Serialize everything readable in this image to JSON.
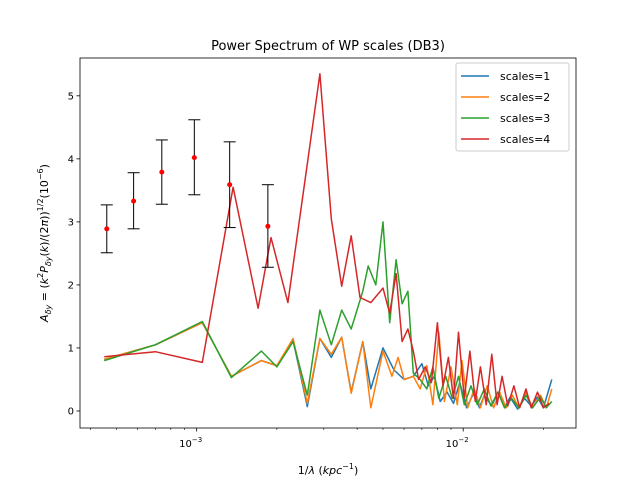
{
  "chart_data": {
    "type": "line",
    "title": "Power Spectrum of WP scales (DB3)",
    "xlabel": "1/λ (kpc⁻¹)",
    "ylabel": "A_δy = (k²P_δy(k)/(2π))^{1/2} (10⁻⁶)",
    "xscale": "log",
    "xlim": [
      0.000365,
      0.0265
    ],
    "ylim": [
      -0.27,
      5.6
    ],
    "xticks": [
      {
        "value": 0.001,
        "base": "10",
        "exp": "−3"
      },
      {
        "value": 0.01,
        "base": "10",
        "exp": "−2"
      }
    ],
    "yticks": [
      0,
      1,
      2,
      3,
      4,
      5
    ],
    "yticklabels": [
      "0",
      "1",
      "2",
      "3",
      "4",
      "5"
    ],
    "grid": false,
    "legend_position": "top-right",
    "series": [
      {
        "name": "scales=1",
        "color": "#1f77b4",
        "points": [
          [
            0.00045,
            0.82
          ],
          [
            0.0007,
            1.05
          ],
          [
            0.00105,
            1.4
          ],
          [
            0.00135,
            0.55
          ],
          [
            0.00175,
            0.8
          ],
          [
            0.002,
            0.72
          ],
          [
            0.0023,
            1.12
          ],
          [
            0.0026,
            0.07
          ],
          [
            0.0029,
            1.15
          ],
          [
            0.0032,
            0.85
          ],
          [
            0.0035,
            1.17
          ],
          [
            0.0038,
            0.3
          ],
          [
            0.0042,
            1.1
          ],
          [
            0.0045,
            0.35
          ],
          [
            0.005,
            1.0
          ],
          [
            0.0055,
            0.65
          ],
          [
            0.006,
            0.5
          ],
          [
            0.0065,
            0.55
          ],
          [
            0.007,
            0.75
          ],
          [
            0.0074,
            0.4
          ],
          [
            0.0078,
            0.55
          ],
          [
            0.0082,
            0.15
          ],
          [
            0.0087,
            0.3
          ],
          [
            0.0092,
            0.12
          ],
          [
            0.0097,
            0.45
          ],
          [
            0.0103,
            0.05
          ],
          [
            0.011,
            0.3
          ],
          [
            0.0115,
            0.05
          ],
          [
            0.012,
            0.25
          ],
          [
            0.0128,
            0.08
          ],
          [
            0.0135,
            0.3
          ],
          [
            0.0143,
            0.05
          ],
          [
            0.015,
            0.22
          ],
          [
            0.016,
            0.03
          ],
          [
            0.017,
            0.2
          ],
          [
            0.018,
            0.08
          ],
          [
            0.019,
            0.22
          ],
          [
            0.02,
            0.05
          ],
          [
            0.0215,
            0.5
          ]
        ]
      },
      {
        "name": "scales=2",
        "color": "#ff7f0e",
        "points": [
          [
            0.00045,
            0.82
          ],
          [
            0.0007,
            1.05
          ],
          [
            0.00105,
            1.4
          ],
          [
            0.00135,
            0.55
          ],
          [
            0.00175,
            0.8
          ],
          [
            0.002,
            0.72
          ],
          [
            0.0023,
            1.15
          ],
          [
            0.0026,
            0.12
          ],
          [
            0.0029,
            1.15
          ],
          [
            0.0032,
            0.9
          ],
          [
            0.0035,
            1.17
          ],
          [
            0.0038,
            0.28
          ],
          [
            0.0042,
            1.1
          ],
          [
            0.0045,
            0.05
          ],
          [
            0.005,
            0.95
          ],
          [
            0.0054,
            0.55
          ],
          [
            0.0057,
            0.85
          ],
          [
            0.006,
            0.5
          ],
          [
            0.0065,
            0.55
          ],
          [
            0.0069,
            0.35
          ],
          [
            0.0073,
            0.72
          ],
          [
            0.0077,
            0.1
          ],
          [
            0.0081,
            1.25
          ],
          [
            0.0085,
            0.15
          ],
          [
            0.009,
            0.7
          ],
          [
            0.0095,
            0.1
          ],
          [
            0.0099,
            0.8
          ],
          [
            0.0104,
            0.05
          ],
          [
            0.011,
            0.35
          ],
          [
            0.0116,
            0.05
          ],
          [
            0.0123,
            0.4
          ],
          [
            0.013,
            0.05
          ],
          [
            0.0137,
            0.3
          ],
          [
            0.0145,
            0.05
          ],
          [
            0.0153,
            0.25
          ],
          [
            0.0162,
            0.05
          ],
          [
            0.0172,
            0.3
          ],
          [
            0.0182,
            0.05
          ],
          [
            0.0195,
            0.25
          ],
          [
            0.0205,
            0.05
          ],
          [
            0.0215,
            0.35
          ]
        ]
      },
      {
        "name": "scales=3",
        "color": "#2ca02c",
        "points": [
          [
            0.00045,
            0.8
          ],
          [
            0.0007,
            1.05
          ],
          [
            0.00105,
            1.42
          ],
          [
            0.00135,
            0.53
          ],
          [
            0.00175,
            0.95
          ],
          [
            0.002,
            0.7
          ],
          [
            0.0023,
            1.1
          ],
          [
            0.0026,
            0.25
          ],
          [
            0.0029,
            1.6
          ],
          [
            0.0032,
            1.05
          ],
          [
            0.0035,
            1.6
          ],
          [
            0.0038,
            1.3
          ],
          [
            0.0042,
            1.9
          ],
          [
            0.0044,
            2.3
          ],
          [
            0.0047,
            2.0
          ],
          [
            0.005,
            3.0
          ],
          [
            0.0053,
            1.4
          ],
          [
            0.0056,
            2.4
          ],
          [
            0.0059,
            1.7
          ],
          [
            0.0062,
            1.9
          ],
          [
            0.0065,
            0.6
          ],
          [
            0.0069,
            0.5
          ],
          [
            0.0073,
            0.35
          ],
          [
            0.0077,
            0.7
          ],
          [
            0.0081,
            0.2
          ],
          [
            0.0086,
            0.55
          ],
          [
            0.0091,
            0.2
          ],
          [
            0.0096,
            0.55
          ],
          [
            0.0101,
            0.1
          ],
          [
            0.0107,
            0.4
          ],
          [
            0.0113,
            0.1
          ],
          [
            0.012,
            0.35
          ],
          [
            0.0127,
            0.08
          ],
          [
            0.0135,
            0.3
          ],
          [
            0.0143,
            0.05
          ],
          [
            0.0152,
            0.2
          ],
          [
            0.0162,
            0.05
          ],
          [
            0.0172,
            0.25
          ],
          [
            0.0182,
            0.05
          ],
          [
            0.0195,
            0.22
          ],
          [
            0.0205,
            0.05
          ],
          [
            0.0215,
            0.15
          ]
        ]
      },
      {
        "name": "scales=4",
        "color": "#d62728",
        "points": [
          [
            0.00045,
            0.86
          ],
          [
            0.0007,
            0.94
          ],
          [
            0.00105,
            0.77
          ],
          [
            0.00137,
            3.55
          ],
          [
            0.0017,
            1.63
          ],
          [
            0.0019,
            2.75
          ],
          [
            0.0022,
            1.72
          ],
          [
            0.0029,
            5.35
          ],
          [
            0.0032,
            3.05
          ],
          [
            0.0035,
            1.98
          ],
          [
            0.0038,
            2.78
          ],
          [
            0.0041,
            1.8
          ],
          [
            0.0045,
            1.72
          ],
          [
            0.005,
            1.95
          ],
          [
            0.0053,
            1.55
          ],
          [
            0.0056,
            2.18
          ],
          [
            0.0059,
            1.1
          ],
          [
            0.0062,
            1.3
          ],
          [
            0.0065,
            0.95
          ],
          [
            0.0068,
            0.5
          ],
          [
            0.0072,
            0.7
          ],
          [
            0.0076,
            0.45
          ],
          [
            0.008,
            1.4
          ],
          [
            0.0084,
            0.4
          ],
          [
            0.0088,
            0.85
          ],
          [
            0.0092,
            0.2
          ],
          [
            0.0096,
            1.25
          ],
          [
            0.0101,
            0.2
          ],
          [
            0.0106,
            0.95
          ],
          [
            0.0111,
            0.15
          ],
          [
            0.0116,
            0.7
          ],
          [
            0.0122,
            0.1
          ],
          [
            0.0128,
            0.9
          ],
          [
            0.0134,
            0.1
          ],
          [
            0.014,
            0.55
          ],
          [
            0.0147,
            0.08
          ],
          [
            0.0155,
            0.4
          ],
          [
            0.0163,
            0.05
          ],
          [
            0.0172,
            0.35
          ],
          [
            0.018,
            0.05
          ],
          [
            0.019,
            0.3
          ],
          [
            0.02,
            0.05
          ],
          [
            0.021,
            0.12
          ]
        ]
      }
    ],
    "error_points": {
      "color": "#ff0000",
      "capcolor": "#000000",
      "points": [
        {
          "x": 0.00046,
          "y": 2.89,
          "lower": 2.51,
          "upper": 3.27
        },
        {
          "x": 0.00058,
          "y": 3.33,
          "lower": 2.89,
          "upper": 3.78
        },
        {
          "x": 0.00074,
          "y": 3.79,
          "lower": 3.28,
          "upper": 4.3
        },
        {
          "x": 0.00098,
          "y": 4.02,
          "lower": 3.43,
          "upper": 4.62
        },
        {
          "x": 0.00133,
          "y": 3.59,
          "lower": 2.91,
          "upper": 4.27
        },
        {
          "x": 0.00185,
          "y": 2.93,
          "lower": 2.28,
          "upper": 3.59
        }
      ]
    }
  }
}
